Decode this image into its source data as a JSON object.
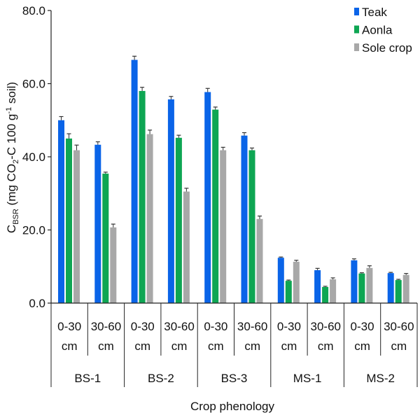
{
  "chart_data": {
    "type": "bar",
    "ylabel": "C",
    "ylabel_sub": "BSR",
    "ylabel_rest": " (mg CO",
    "ylabel_sub2": "2",
    "ylabel_rest2": "-C 100 g",
    "ylabel_sup": "-1",
    "ylabel_end": " soil)",
    "xlabel": "Crop phenology",
    "ylim": [
      0,
      80
    ],
    "yticks": [
      "0.0",
      "20.0",
      "40.0",
      "60.0",
      "80.0"
    ],
    "groups": [
      "BS-1",
      "BS-2",
      "BS-3",
      "MS-1",
      "MS-2"
    ],
    "depths": [
      [
        "0-30",
        "cm"
      ],
      [
        "30-60",
        "cm"
      ]
    ],
    "legend_position": "top-right",
    "grid": false,
    "series": [
      {
        "name": "Teak",
        "color": "#0a64e8",
        "values": [
          50.0,
          43.3,
          66.5,
          55.7,
          57.7,
          45.8,
          12.4,
          9.0,
          11.7,
          8.2
        ],
        "errors": [
          1.0,
          0.8,
          1.0,
          0.8,
          1.0,
          0.8,
          0.2,
          0.5,
          0.4,
          0.2
        ]
      },
      {
        "name": "Aonla",
        "color": "#0ea653",
        "values": [
          45.0,
          35.4,
          58.0,
          45.2,
          52.9,
          41.8,
          6.1,
          4.4,
          8.1,
          6.3
        ],
        "errors": [
          1.3,
          0.4,
          1.0,
          0.7,
          0.7,
          0.6,
          0.2,
          0.2,
          0.2,
          0.2
        ]
      },
      {
        "name": "Sole crop",
        "color": "#a8a8a8",
        "values": [
          41.8,
          20.7,
          46.2,
          30.5,
          41.8,
          23.0,
          11.3,
          6.5,
          9.6,
          7.7
        ],
        "errors": [
          1.4,
          0.9,
          1.1,
          0.9,
          0.8,
          0.8,
          0.4,
          0.4,
          0.6,
          0.4
        ]
      }
    ]
  }
}
